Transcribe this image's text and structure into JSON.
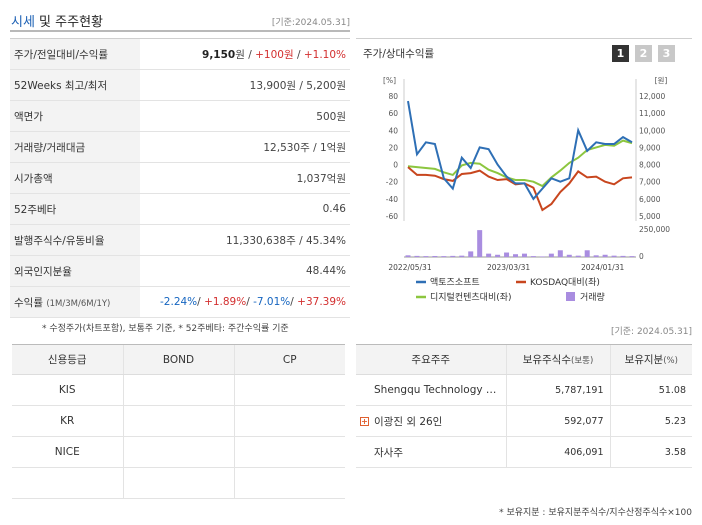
{
  "header": {
    "title_accent": "시세",
    "title_rest": " 및 주주현황",
    "date_label": "[기준:2024.05.31]"
  },
  "market": {
    "rows": [
      {
        "key": "price",
        "label": "주가/전일대비/수익률"
      },
      {
        "key": "range",
        "label": "52Weeks 최고/최저",
        "value": "13,900원 / 5,200원"
      },
      {
        "key": "par",
        "label": "액면가",
        "value": "500원"
      },
      {
        "key": "volume",
        "label": "거래량/거래대금",
        "value": "12,530주 / 1억원"
      },
      {
        "key": "mcap",
        "label": "시가총액",
        "value": "1,037억원"
      },
      {
        "key": "beta",
        "label": "52주베타",
        "value": "0.46"
      },
      {
        "key": "shares",
        "label": "발행주식수/유동비율",
        "value": "11,330,638주 / 45.34%"
      },
      {
        "key": "foreign",
        "label": "외국인지분율",
        "value": "48.44%"
      },
      {
        "key": "returns",
        "label": "수익률",
        "label_small": "(1M/3M/6M/1Y)"
      }
    ],
    "price": {
      "close": "9,150",
      "unit": "원",
      "change": "+100원",
      "rate": "+1.10%",
      "sep": " / "
    },
    "returns": {
      "m1": "-2.24%",
      "m3": "+1.89%",
      "m6": "-7.01%",
      "y1": "+37.39%",
      "sep": "/ "
    },
    "note": "* 수정주가(차트포함), 보통주 기준, * 52주베타: 주간수익률 기준"
  },
  "chart_panel": {
    "title": "주가/상대수익률",
    "tabs": [
      "1",
      "2",
      "3"
    ],
    "active_tab": "1"
  },
  "chart_data": {
    "type": "line",
    "left_axis_unit": "[%]",
    "right_axis_unit": "[원]",
    "left_ticks": [
      "80",
      "60",
      "40",
      "20",
      "0",
      "-20",
      "-40",
      "-60"
    ],
    "right_ticks": [
      "12,000",
      "11,000",
      "10,000",
      "9,000",
      "8,000",
      "7,000",
      "6,000",
      "5,000"
    ],
    "volume_ticks": [
      "250,000",
      "0"
    ],
    "x_ticks": [
      "2022/05/31",
      "2023/03/31",
      "2024/01/31"
    ],
    "ylim_left": [
      -60,
      80
    ],
    "ylim_right": [
      5000,
      12000
    ],
    "series": [
      {
        "name": "액토즈소프트",
        "color": "#2e6fb5",
        "axis": "right",
        "values": [
          11700,
          8600,
          9300,
          9200,
          7200,
          6600,
          8400,
          7800,
          9000,
          8900,
          8000,
          7300,
          6900,
          6900,
          6000,
          6600,
          7200,
          7000,
          7200,
          10000,
          8800,
          9300,
          9200,
          9200,
          9600,
          9300
        ]
      },
      {
        "name": "KOSDAQ대비(좌)",
        "color": "#c8461e",
        "axis": "left",
        "values": [
          -3,
          -12,
          -12,
          -13,
          -17,
          -19,
          -11,
          -10,
          -7,
          -14,
          -18,
          -17,
          -23,
          -22,
          -27,
          -53,
          -46,
          -32,
          -22,
          -8,
          -15,
          -14,
          -20,
          -23,
          -16,
          -15
        ]
      },
      {
        "name": "디지털컨텐츠대비(좌)",
        "color": "#8cc63f",
        "axis": "left",
        "values": [
          -2,
          -3,
          -4,
          -5,
          -9,
          -12,
          -1,
          2,
          1,
          -6,
          -10,
          -15,
          -18,
          -18,
          -20,
          -25,
          -15,
          -7,
          2,
          8,
          17,
          20,
          23,
          22,
          28,
          25
        ]
      },
      {
        "name": "거래량",
        "color": "#a98de0",
        "axis": "volume",
        "values": [
          15000,
          10000,
          8000,
          9000,
          8000,
          10000,
          12000,
          50000,
          240000,
          30000,
          20000,
          40000,
          25000,
          30000,
          8000,
          5000,
          30000,
          60000,
          20000,
          12000,
          60000,
          15000,
          20000,
          12000,
          10000,
          8000
        ]
      }
    ]
  },
  "right_date": "[기준: 2024.05.31]",
  "credit": {
    "headers": [
      "신용등급",
      "BOND",
      "CP"
    ],
    "rows": [
      [
        "KIS",
        "",
        ""
      ],
      [
        "KR",
        "",
        ""
      ],
      [
        "NICE",
        "",
        ""
      ],
      [
        "",
        "",
        ""
      ]
    ]
  },
  "holders": {
    "headers": {
      "name": "주요주주",
      "shares": "보유주식수",
      "shares_small": "(보통)",
      "ratio": "보유지분",
      "ratio_small": "(%)"
    },
    "rows": [
      {
        "name": "Shengqu Technology …",
        "shares": "5,787,191",
        "ratio": "51.08",
        "expand": false
      },
      {
        "name": "이광진 외 26인",
        "shares": "592,077",
        "ratio": "5.23",
        "expand": true,
        "expand_glyph": "+"
      },
      {
        "name": "자사주",
        "shares": "406,091",
        "ratio": "3.58",
        "expand": false
      }
    ],
    "note": "* 보유지분 : 보유지분주식수/지수산정주식수×100"
  }
}
